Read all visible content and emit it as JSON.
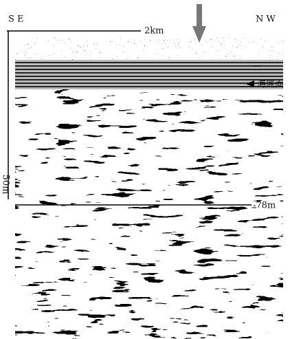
{
  "labels": {
    "left_direction": "S E",
    "right_direction": "N W",
    "horizontal_scale": "2km",
    "vertical_scale": "50m",
    "seafloor": "海底面",
    "depth": "-78m"
  }
}
